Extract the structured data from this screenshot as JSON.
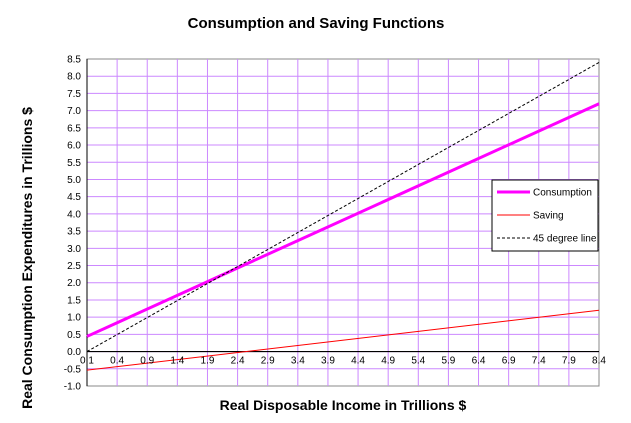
{
  "chart_data": {
    "type": "line",
    "title": "Consumption and Saving Functions",
    "xlabel": "Real Disposable Income in Trillions $",
    "ylabel": "Real Consumption Expenditures in Trillions $",
    "xlim": [
      0.1,
      8.4
    ],
    "ylim": [
      -1.0,
      8.5
    ],
    "x_ticks": [
      "0.1",
      "0.4",
      "0.9",
      "1.4",
      "1.9",
      "2.4",
      "2.9",
      "3.4",
      "3.9",
      "4.4",
      "4.9",
      "5.4",
      "5.9",
      "6.4",
      "6.9",
      "7.4",
      "7.9",
      "8.4"
    ],
    "y_ticks": [
      "-1.0",
      "-0.5",
      "0.0",
      "0.5",
      "1.0",
      "1.5",
      "2.0",
      "2.5",
      "3.0",
      "3.5",
      "4.0",
      "4.5",
      "5.0",
      "5.5",
      "6.0",
      "6.5",
      "7.0",
      "7.5",
      "8.0",
      "8.5"
    ],
    "grid": true,
    "legend_position": "right",
    "series": [
      {
        "name": "Consumption",
        "x": [
          0.1,
          8.4
        ],
        "y": [
          0.44,
          7.2
        ],
        "color": "#ff00ff",
        "style": "solid-thick"
      },
      {
        "name": "Saving",
        "x": [
          0.1,
          8.4
        ],
        "y": [
          -0.54,
          1.2
        ],
        "color": "#ff0000",
        "style": "solid"
      },
      {
        "name": "45 degree line",
        "x": [
          0.1,
          8.4
        ],
        "y": [
          0.0,
          8.4
        ],
        "color": "#000000",
        "style": "dashed"
      }
    ]
  }
}
